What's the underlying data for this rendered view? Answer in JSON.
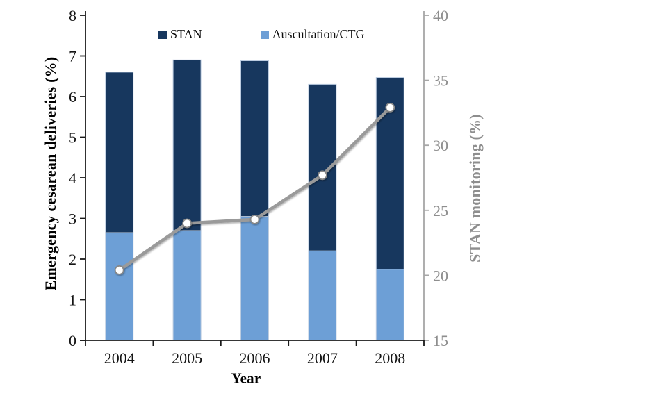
{
  "chart_data": {
    "type": "combo-stacked-bar-line",
    "title": "",
    "categories": [
      "2004",
      "2005",
      "2006",
      "2007",
      "2008"
    ],
    "series": [
      {
        "name": "Auscultation/CTG",
        "type": "bar",
        "stack": "deliveries",
        "axis": "left",
        "color": "#6D9FD6",
        "values": [
          2.65,
          2.7,
          3.05,
          2.2,
          1.75
        ]
      },
      {
        "name": "STAN",
        "type": "bar",
        "stack": "deliveries",
        "axis": "left",
        "color": "#17375E",
        "values": [
          3.95,
          4.2,
          3.83,
          4.1,
          4.72
        ]
      },
      {
        "name": "STAN monitoring",
        "type": "line",
        "axis": "right",
        "color": "#9A9A9A",
        "marker": {
          "shape": "circle",
          "fill": "#FFFFFF",
          "stroke": "#878787"
        },
        "values": [
          20.4,
          24.0,
          24.3,
          27.7,
          32.9
        ]
      }
    ],
    "stack_totals": [
      6.6,
      6.9,
      6.88,
      6.3,
      6.47
    ],
    "axes": {
      "left": {
        "title": "Emergency cesarean deliveries (%)",
        "min": 0,
        "max": 8,
        "tick_step": 1,
        "tick_labels": [
          "0",
          "1",
          "2",
          "3",
          "4",
          "5",
          "6",
          "7",
          "8"
        ],
        "label_color": "#141414",
        "axis_color": "#1a1a1a"
      },
      "right": {
        "title": "STAN monitoring (%)",
        "min": 15,
        "max": 40,
        "tick_step": 5,
        "tick_labels": [
          "15",
          "20",
          "25",
          "30",
          "35",
          "40"
        ],
        "label_color": "#8e8e8e",
        "axis_color": "#a6a6a6"
      },
      "x": {
        "title": "Year",
        "tick_labels": [
          "2004",
          "2005",
          "2006",
          "2007",
          "2008"
        ],
        "label_color": "#141414",
        "axis_color": "#1a1a1a"
      }
    },
    "legend": {
      "position": "top-inside",
      "entries": [
        {
          "label": "STAN",
          "color": "#17375E"
        },
        {
          "label": "Auscultation/CTG",
          "color": "#6D9FD6"
        }
      ]
    },
    "grid": false,
    "bar_border_color": "#BCCCE0",
    "background": "#FFFFFF"
  }
}
